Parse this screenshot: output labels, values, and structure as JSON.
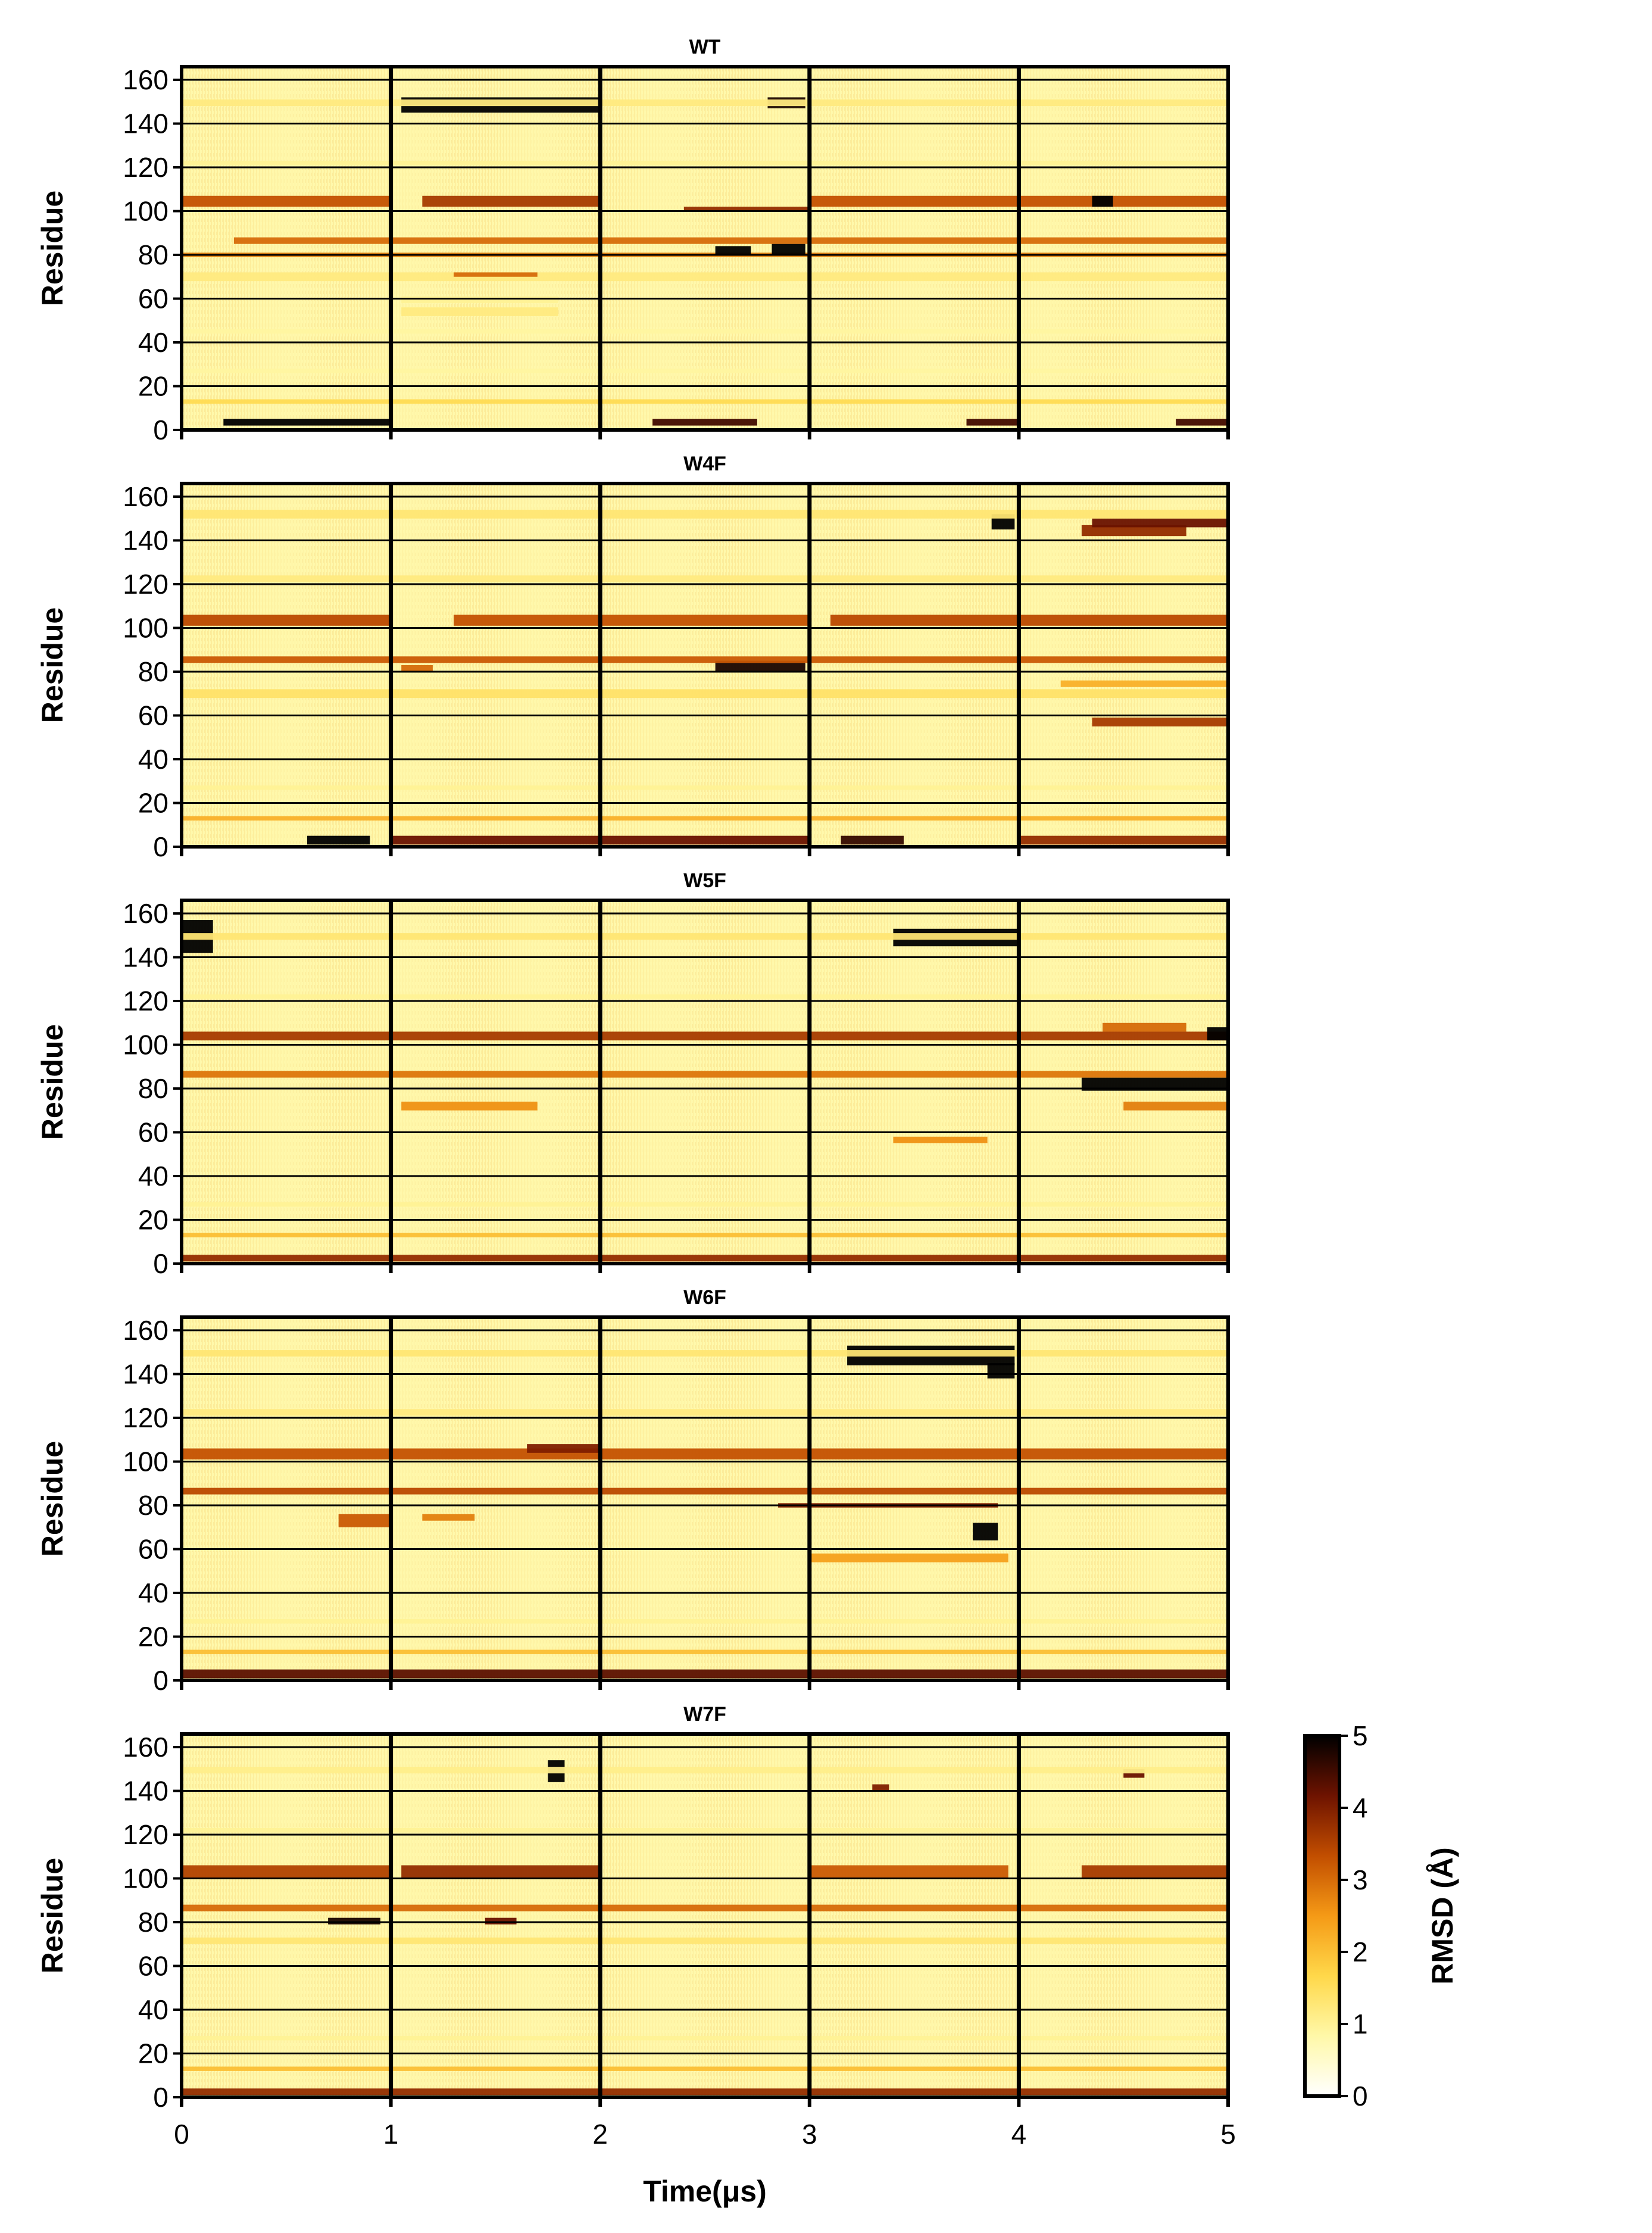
{
  "chart_data": {
    "type": "heatmap",
    "panels": [
      {
        "title": "WT",
        "bands": [
          {
            "res": [
              2,
              5
            ],
            "t": [
              0.2,
              1.0
            ],
            "v": 5
          },
          {
            "res": [
              2,
              5
            ],
            "t": [
              2.25,
              2.75
            ],
            "v": 4.5
          },
          {
            "res": [
              2,
              5
            ],
            "t": [
              3.75,
              4.0
            ],
            "v": 4.5
          },
          {
            "res": [
              2,
              5
            ],
            "t": [
              4.75,
              5.0
            ],
            "v": 4.5
          },
          {
            "res": [
              12,
              14
            ],
            "t": [
              0.0,
              5.0
            ],
            "v": 1.6
          },
          {
            "res": [
              26,
              28
            ],
            "t": [
              0.0,
              5.0
            ],
            "v": 0.9
          },
          {
            "res": [
              44,
              46
            ],
            "t": [
              0.0,
              5.0
            ],
            "v": 0.9
          },
          {
            "res": [
              52,
              56
            ],
            "t": [
              1.05,
              1.8
            ],
            "v": 1.2
          },
          {
            "res": [
              58,
              61
            ],
            "t": [
              1.05,
              1.8
            ],
            "v": 1.0
          },
          {
            "res": [
              68,
              72
            ],
            "t": [
              0.0,
              5.0
            ],
            "v": 1.2
          },
          {
            "res": [
              70,
              72
            ],
            "t": [
              1.3,
              1.7
            ],
            "v": 3.0
          },
          {
            "res": [
              79,
              81
            ],
            "t": [
              0.0,
              5.0
            ],
            "v": 2.8
          },
          {
            "res": [
              80,
              84
            ],
            "t": [
              2.55,
              2.72
            ],
            "v": 5
          },
          {
            "res": [
              80,
              85
            ],
            "t": [
              2.82,
              2.98
            ],
            "v": 5
          },
          {
            "res": [
              85,
              88
            ],
            "t": [
              0.25,
              5.0
            ],
            "v": 3.0
          },
          {
            "res": [
              100,
              102
            ],
            "t": [
              2.4,
              3.0
            ],
            "v": 3.8
          },
          {
            "res": [
              102,
              107
            ],
            "t": [
              0.0,
              1.0
            ],
            "v": 3.3
          },
          {
            "res": [
              102,
              107
            ],
            "t": [
              1.15,
              2.0
            ],
            "v": 3.6
          },
          {
            "res": [
              102,
              107
            ],
            "t": [
              3.0,
              5.0
            ],
            "v": 3.3
          },
          {
            "res": [
              102,
              107
            ],
            "t": [
              4.35,
              4.45
            ],
            "v": 5
          },
          {
            "res": [
              121,
              123
            ],
            "t": [
              0.0,
              5.0
            ],
            "v": 1.0
          },
          {
            "res": [
              145,
              152
            ],
            "t": [
              1.05,
              2.0
            ],
            "v": 5
          },
          {
            "res": [
              147,
              152
            ],
            "t": [
              2.8,
              2.98
            ],
            "v": 4.8
          },
          {
            "res": [
              148,
              151
            ],
            "t": [
              0.0,
              5.0
            ],
            "v": 1.2
          }
        ]
      },
      {
        "title": "W4F",
        "bands": [
          {
            "res": [
              1,
              5
            ],
            "t": [
              0.6,
              0.9
            ],
            "v": 5
          },
          {
            "res": [
              1,
              5
            ],
            "t": [
              1.0,
              3.0
            ],
            "v": 4.2
          },
          {
            "res": [
              1,
              5
            ],
            "t": [
              3.15,
              3.45
            ],
            "v": 4.6
          },
          {
            "res": [
              1,
              5
            ],
            "t": [
              4.0,
              5.0
            ],
            "v": 3.8
          },
          {
            "res": [
              12,
              14
            ],
            "t": [
              0.0,
              5.0
            ],
            "v": 2.2
          },
          {
            "res": [
              26,
              28
            ],
            "t": [
              0.0,
              5.0
            ],
            "v": 1.0
          },
          {
            "res": [
              55,
              59
            ],
            "t": [
              4.35,
              5.0
            ],
            "v": 3.6
          },
          {
            "res": [
              68,
              72
            ],
            "t": [
              0.0,
              5.0
            ],
            "v": 1.4
          },
          {
            "res": [
              73,
              76
            ],
            "t": [
              4.2,
              5.0
            ],
            "v": 2.2
          },
          {
            "res": [
              80,
              83
            ],
            "t": [
              1.05,
              1.2
            ],
            "v": 3.0
          },
          {
            "res": [
              80,
              85
            ],
            "t": [
              2.55,
              2.98
            ],
            "v": 4.8
          },
          {
            "res": [
              84,
              87
            ],
            "t": [
              0.0,
              5.0
            ],
            "v": 3.2
          },
          {
            "res": [
              101,
              106
            ],
            "t": [
              0.0,
              1.0
            ],
            "v": 3.4
          },
          {
            "res": [
              101,
              106
            ],
            "t": [
              1.3,
              3.0
            ],
            "v": 3.3
          },
          {
            "res": [
              101,
              106
            ],
            "t": [
              3.1,
              5.0
            ],
            "v": 3.4
          },
          {
            "res": [
              121,
              124
            ],
            "t": [
              0.0,
              5.0
            ],
            "v": 1.2
          },
          {
            "res": [
              142,
              147
            ],
            "t": [
              4.3,
              4.8
            ],
            "v": 3.8
          },
          {
            "res": [
              145,
              152
            ],
            "t": [
              3.87,
              3.98
            ],
            "v": 5
          },
          {
            "res": [
              146,
              150
            ],
            "t": [
              4.35,
              5.0
            ],
            "v": 4.2
          },
          {
            "res": [
              150,
              154
            ],
            "t": [
              0.0,
              5.0
            ],
            "v": 1.3
          }
        ]
      },
      {
        "title": "W5F",
        "bands": [
          {
            "res": [
              1,
              4
            ],
            "t": [
              0.0,
              5.0
            ],
            "v": 3.8
          },
          {
            "res": [
              12,
              14
            ],
            "t": [
              0.0,
              5.0
            ],
            "v": 2.0
          },
          {
            "res": [
              26,
              28
            ],
            "t": [
              0.0,
              5.0
            ],
            "v": 1.0
          },
          {
            "res": [
              55,
              58
            ],
            "t": [
              3.4,
              3.85
            ],
            "v": 2.6
          },
          {
            "res": [
              70,
              74
            ],
            "t": [
              1.05,
              1.7
            ],
            "v": 2.6
          },
          {
            "res": [
              70,
              74
            ],
            "t": [
              4.5,
              5.0
            ],
            "v": 2.8
          },
          {
            "res": [
              79,
              85
            ],
            "t": [
              4.3,
              5.0
            ],
            "v": 5
          },
          {
            "res": [
              85,
              88
            ],
            "t": [
              0.0,
              5.0
            ],
            "v": 2.9
          },
          {
            "res": [
              102,
              106
            ],
            "t": [
              0.0,
              5.0
            ],
            "v": 3.6
          },
          {
            "res": [
              102,
              108
            ],
            "t": [
              4.9,
              5.0
            ],
            "v": 5
          },
          {
            "res": [
              106,
              110
            ],
            "t": [
              4.4,
              4.8
            ],
            "v": 3.0
          },
          {
            "res": [
              121,
              123
            ],
            "t": [
              0.0,
              5.0
            ],
            "v": 1.0
          },
          {
            "res": [
              142,
              157
            ],
            "t": [
              0.0,
              0.15
            ],
            "v": 5
          },
          {
            "res": [
              145,
              153
            ],
            "t": [
              3.4,
              4.0
            ],
            "v": 5
          },
          {
            "res": [
              148,
              151
            ],
            "t": [
              0.0,
              5.0
            ],
            "v": 1.3
          }
        ]
      },
      {
        "title": "W6F",
        "bands": [
          {
            "res": [
              1,
              5
            ],
            "t": [
              0.0,
              5.0
            ],
            "v": 4.3
          },
          {
            "res": [
              12,
              14
            ],
            "t": [
              0.0,
              5.0
            ],
            "v": 2.0
          },
          {
            "res": [
              26,
              28
            ],
            "t": [
              0.0,
              5.0
            ],
            "v": 1.0
          },
          {
            "res": [
              54,
              58
            ],
            "t": [
              3.0,
              3.95
            ],
            "v": 2.4
          },
          {
            "res": [
              64,
              72
            ],
            "t": [
              3.78,
              3.9
            ],
            "v": 5
          },
          {
            "res": [
              70,
              76
            ],
            "t": [
              0.75,
              1.0
            ],
            "v": 3.2
          },
          {
            "res": [
              73,
              76
            ],
            "t": [
              1.15,
              1.4
            ],
            "v": 2.8
          },
          {
            "res": [
              79,
              81
            ],
            "t": [
              2.85,
              3.9
            ],
            "v": 4.0
          },
          {
            "res": [
              85,
              88
            ],
            "t": [
              0.0,
              5.0
            ],
            "v": 3.4
          },
          {
            "res": [
              101,
              106
            ],
            "t": [
              0.0,
              5.0
            ],
            "v": 3.3
          },
          {
            "res": [
              104,
              108
            ],
            "t": [
              1.65,
              2.0
            ],
            "v": 4.0
          },
          {
            "res": [
              121,
              124
            ],
            "t": [
              0.0,
              5.0
            ],
            "v": 1.2
          },
          {
            "res": [
              138,
              145
            ],
            "t": [
              3.85,
              3.98
            ],
            "v": 5
          },
          {
            "res": [
              144,
              153
            ],
            "t": [
              3.18,
              3.98
            ],
            "v": 5
          },
          {
            "res": [
              148,
              151
            ],
            "t": [
              0.0,
              5.0
            ],
            "v": 1.3
          }
        ]
      },
      {
        "title": "W7F",
        "bands": [
          {
            "res": [
              1,
              4
            ],
            "t": [
              0.0,
              5.0
            ],
            "v": 3.8
          },
          {
            "res": [
              12,
              14
            ],
            "t": [
              0.0,
              5.0
            ],
            "v": 2.0
          },
          {
            "res": [
              26,
              28
            ],
            "t": [
              0.0,
              5.0
            ],
            "v": 1.0
          },
          {
            "res": [
              70,
              73
            ],
            "t": [
              0.0,
              5.0
            ],
            "v": 1.3
          },
          {
            "res": [
              79,
              82
            ],
            "t": [
              0.7,
              0.95
            ],
            "v": 4.8
          },
          {
            "res": [
              79,
              82
            ],
            "t": [
              1.45,
              1.6
            ],
            "v": 4.2
          },
          {
            "res": [
              85,
              88
            ],
            "t": [
              0.0,
              5.0
            ],
            "v": 3.0
          },
          {
            "res": [
              100,
              106
            ],
            "t": [
              0.0,
              1.0
            ],
            "v": 3.5
          },
          {
            "res": [
              100,
              106
            ],
            "t": [
              1.05,
              2.0
            ],
            "v": 3.8
          },
          {
            "res": [
              100,
              106
            ],
            "t": [
              3.0,
              3.95
            ],
            "v": 3.2
          },
          {
            "res": [
              100,
              106
            ],
            "t": [
              4.3,
              5.0
            ],
            "v": 3.6
          },
          {
            "res": [
              121,
              123
            ],
            "t": [
              0.0,
              5.0
            ],
            "v": 1.0
          },
          {
            "res": [
              140,
              143
            ],
            "t": [
              3.3,
              3.38
            ],
            "v": 4.0
          },
          {
            "res": [
              144,
              154
            ],
            "t": [
              1.75,
              1.83
            ],
            "v": 5
          },
          {
            "res": [
              146,
              150
            ],
            "t": [
              4.5,
              4.6
            ],
            "v": 4.2
          },
          {
            "res": [
              148,
              151
            ],
            "t": [
              0.0,
              5.0
            ],
            "v": 1.1
          }
        ]
      }
    ],
    "ylabel": "Residue",
    "xlabel": "Time(μs)",
    "x_ticks": [
      "0",
      "1",
      "2",
      "3",
      "4",
      "5"
    ],
    "y_ticks": [
      "0",
      "20",
      "40",
      "60",
      "80",
      "100",
      "120",
      "140",
      "160"
    ],
    "xlim": [
      0,
      5
    ],
    "ylim": [
      0,
      166
    ],
    "replica_boundaries": [
      1,
      2,
      3,
      4
    ],
    "grid": true,
    "colorbar": {
      "label": "RMSD (Å)",
      "ticks": [
        "0",
        "1",
        "2",
        "3",
        "4",
        "5"
      ],
      "range": [
        0,
        5
      ],
      "colormap": "afmhot_r",
      "colors": [
        "#ffffff",
        "#fff8a8",
        "#ffd84a",
        "#f59a16",
        "#c24e00",
        "#6e1300",
        "#000000"
      ]
    }
  }
}
